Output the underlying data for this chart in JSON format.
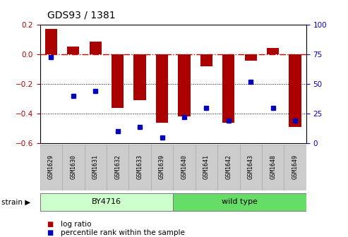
{
  "title": "GDS93 / 1381",
  "samples": [
    "GSM1629",
    "GSM1630",
    "GSM1631",
    "GSM1632",
    "GSM1633",
    "GSM1639",
    "GSM1640",
    "GSM1641",
    "GSM1642",
    "GSM1643",
    "GSM1648",
    "GSM1649"
  ],
  "log_ratio": [
    0.175,
    0.055,
    0.085,
    -0.36,
    -0.31,
    -0.46,
    -0.42,
    -0.08,
    -0.46,
    -0.04,
    0.045,
    -0.49
  ],
  "percentile": [
    73,
    40,
    44,
    10,
    14,
    5,
    22,
    30,
    19,
    52,
    30,
    19
  ],
  "bar_color": "#aa0000",
  "dot_color": "#0000bb",
  "ref_line_color": "#cc0000",
  "ylim_left": [
    -0.6,
    0.2
  ],
  "ylim_right": [
    0,
    100
  ],
  "yticks_left": [
    -0.6,
    -0.4,
    -0.2,
    0.0,
    0.2
  ],
  "yticks_right": [
    0,
    25,
    50,
    75,
    100
  ],
  "strain_groups": [
    {
      "label": "BY4716",
      "start": 0,
      "end": 6,
      "color": "#ccffcc"
    },
    {
      "label": "wild type",
      "start": 6,
      "end": 12,
      "color": "#66dd66"
    }
  ],
  "strain_label": "strain",
  "legend_items": [
    "log ratio",
    "percentile rank within the sample"
  ],
  "tick_bg_color": "#cccccc",
  "tick_border_color": "#aaaaaa"
}
